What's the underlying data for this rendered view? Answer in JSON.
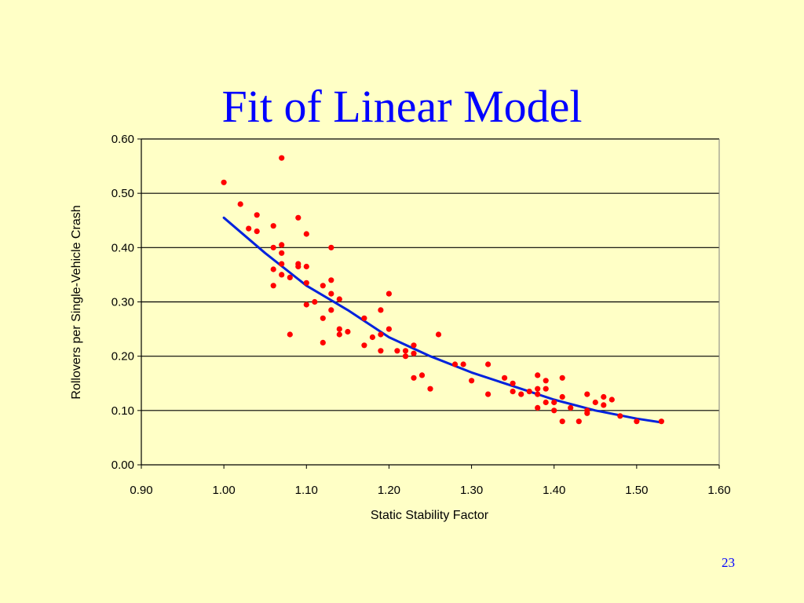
{
  "slide": {
    "title": "Fit of Linear Model",
    "page_number": "23"
  },
  "colors": {
    "background": "#FFFFC6",
    "title": "#0000FF",
    "points": "#FF0000",
    "fit_line": "#0022DD",
    "grid": "#000000"
  },
  "chart_data": {
    "type": "scatter",
    "title": "",
    "xlabel": "Static Stability Factor",
    "ylabel": "Rollovers per Single-Vehicle Crash",
    "xlim": [
      0.9,
      1.6
    ],
    "ylim": [
      0.0,
      0.6
    ],
    "x_ticks": [
      "0.90",
      "1.00",
      "1.10",
      "1.20",
      "1.30",
      "1.40",
      "1.50",
      "1.60"
    ],
    "y_ticks": [
      "0.00",
      "0.10",
      "0.20",
      "0.30",
      "0.40",
      "0.50",
      "0.60"
    ],
    "grid": "horizontal",
    "legend": "none",
    "series": [
      {
        "kind": "points",
        "points": [
          [
            1.0,
            0.52
          ],
          [
            1.02,
            0.48
          ],
          [
            1.03,
            0.435
          ],
          [
            1.04,
            0.46
          ],
          [
            1.04,
            0.43
          ],
          [
            1.06,
            0.44
          ],
          [
            1.06,
            0.4
          ],
          [
            1.06,
            0.36
          ],
          [
            1.06,
            0.33
          ],
          [
            1.07,
            0.565
          ],
          [
            1.07,
            0.405
          ],
          [
            1.07,
            0.39
          ],
          [
            1.07,
            0.37
          ],
          [
            1.07,
            0.35
          ],
          [
            1.08,
            0.345
          ],
          [
            1.08,
            0.24
          ],
          [
            1.09,
            0.455
          ],
          [
            1.09,
            0.37
          ],
          [
            1.09,
            0.365
          ],
          [
            1.1,
            0.425
          ],
          [
            1.1,
            0.365
          ],
          [
            1.1,
            0.335
          ],
          [
            1.1,
            0.295
          ],
          [
            1.11,
            0.3
          ],
          [
            1.12,
            0.33
          ],
          [
            1.12,
            0.27
          ],
          [
            1.12,
            0.225
          ],
          [
            1.13,
            0.4
          ],
          [
            1.13,
            0.34
          ],
          [
            1.13,
            0.315
          ],
          [
            1.13,
            0.285
          ],
          [
            1.14,
            0.305
          ],
          [
            1.14,
            0.25
          ],
          [
            1.14,
            0.24
          ],
          [
            1.15,
            0.245
          ],
          [
            1.17,
            0.27
          ],
          [
            1.17,
            0.22
          ],
          [
            1.18,
            0.235
          ],
          [
            1.19,
            0.285
          ],
          [
            1.19,
            0.24
          ],
          [
            1.19,
            0.21
          ],
          [
            1.2,
            0.315
          ],
          [
            1.2,
            0.25
          ],
          [
            1.21,
            0.21
          ],
          [
            1.22,
            0.21
          ],
          [
            1.22,
            0.2
          ],
          [
            1.23,
            0.22
          ],
          [
            1.23,
            0.205
          ],
          [
            1.23,
            0.16
          ],
          [
            1.24,
            0.165
          ],
          [
            1.25,
            0.14
          ],
          [
            1.26,
            0.24
          ],
          [
            1.28,
            0.185
          ],
          [
            1.29,
            0.185
          ],
          [
            1.3,
            0.155
          ],
          [
            1.32,
            0.185
          ],
          [
            1.32,
            0.13
          ],
          [
            1.34,
            0.16
          ],
          [
            1.35,
            0.15
          ],
          [
            1.35,
            0.135
          ],
          [
            1.36,
            0.13
          ],
          [
            1.37,
            0.135
          ],
          [
            1.38,
            0.165
          ],
          [
            1.38,
            0.14
          ],
          [
            1.38,
            0.13
          ],
          [
            1.38,
            0.105
          ],
          [
            1.39,
            0.155
          ],
          [
            1.39,
            0.14
          ],
          [
            1.39,
            0.115
          ],
          [
            1.4,
            0.115
          ],
          [
            1.4,
            0.1
          ],
          [
            1.41,
            0.16
          ],
          [
            1.41,
            0.125
          ],
          [
            1.41,
            0.08
          ],
          [
            1.42,
            0.105
          ],
          [
            1.43,
            0.08
          ],
          [
            1.44,
            0.13
          ],
          [
            1.44,
            0.1
          ],
          [
            1.44,
            0.095
          ],
          [
            1.45,
            0.115
          ],
          [
            1.46,
            0.125
          ],
          [
            1.46,
            0.11
          ],
          [
            1.47,
            0.12
          ],
          [
            1.48,
            0.09
          ],
          [
            1.5,
            0.08
          ],
          [
            1.53,
            0.08
          ]
        ]
      },
      {
        "kind": "fit_line",
        "points": [
          [
            1.0,
            0.455
          ],
          [
            1.05,
            0.39
          ],
          [
            1.1,
            0.33
          ],
          [
            1.15,
            0.285
          ],
          [
            1.2,
            0.235
          ],
          [
            1.25,
            0.2
          ],
          [
            1.3,
            0.17
          ],
          [
            1.35,
            0.145
          ],
          [
            1.4,
            0.12
          ],
          [
            1.45,
            0.1
          ],
          [
            1.5,
            0.085
          ],
          [
            1.53,
            0.078
          ]
        ]
      }
    ]
  }
}
